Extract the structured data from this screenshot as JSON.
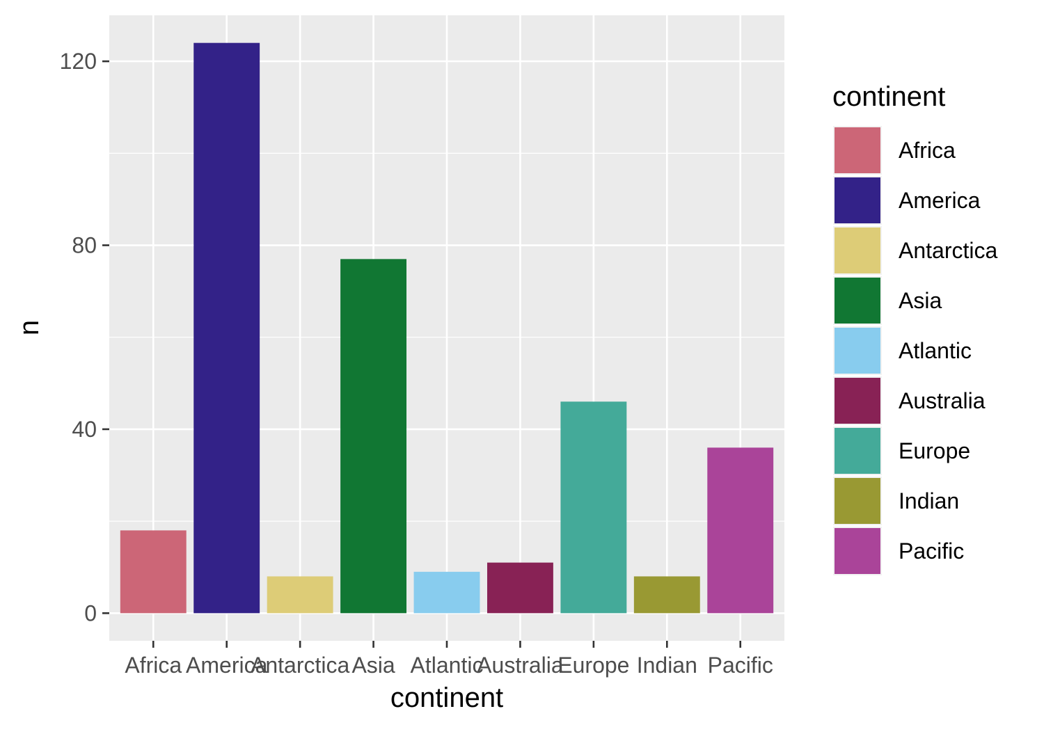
{
  "chart_data": {
    "type": "bar",
    "title": "",
    "xlabel": "continent",
    "ylabel": "n",
    "categories": [
      "Africa",
      "America",
      "Antarctica",
      "Asia",
      "Atlantic",
      "Australia",
      "Europe",
      "Indian",
      "Pacific"
    ],
    "values": [
      18,
      124,
      8,
      77,
      9,
      11,
      46,
      8,
      36
    ],
    "colors": [
      "#CC6677",
      "#332288",
      "#DDCC77",
      "#117733",
      "#88CCEE",
      "#882255",
      "#44AA99",
      "#999933",
      "#AA4499"
    ],
    "ylim": [
      -6,
      130
    ],
    "yticks": [
      0,
      40,
      80,
      120
    ],
    "y_minor_ticks": [
      20,
      60,
      100
    ],
    "grid": true,
    "panel_background": "#EBEBEB",
    "grid_color": "#FFFFFF",
    "legend": {
      "title": "continent",
      "position": "right",
      "entries": [
        "Africa",
        "America",
        "Antarctica",
        "Asia",
        "Atlantic",
        "Australia",
        "Europe",
        "Indian",
        "Pacific"
      ]
    }
  }
}
